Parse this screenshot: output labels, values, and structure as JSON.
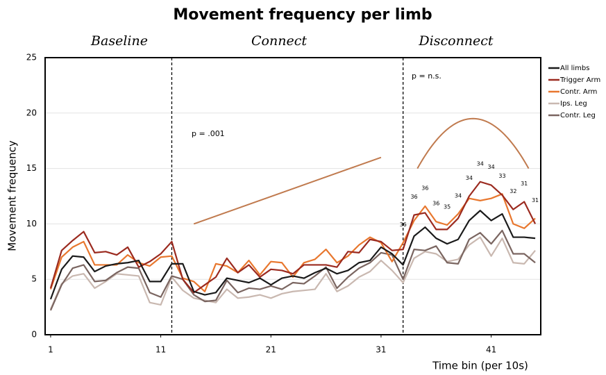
{
  "chart_data": {
    "type": "line",
    "title": "Movement frequency per limb",
    "xlabel": "Time bin (per 10s)",
    "ylabel": "Movement frequency",
    "phases": [
      "Baseline",
      "Connect",
      "Disconnect"
    ],
    "phase_boundaries": [
      12,
      33
    ],
    "annotations": [
      "p = .001",
      "p = n.s."
    ],
    "trend_line": {
      "x": [
        14,
        31
      ],
      "y": [
        10,
        16
      ]
    },
    "arc": {
      "x": [
        34.3,
        39.3,
        44.4
      ],
      "y": [
        15,
        19.5,
        15
      ]
    },
    "n_labels": {
      "bins": [
        33,
        34,
        35,
        36,
        37,
        38,
        39,
        40,
        41,
        42,
        43,
        44,
        45
      ],
      "values": [
        36,
        36,
        36,
        36,
        35,
        34,
        34,
        34,
        34,
        33,
        32,
        31,
        31
      ]
    },
    "x": [
      1,
      2,
      3,
      4,
      5,
      6,
      7,
      8,
      9,
      10,
      11,
      12,
      13,
      14,
      15,
      16,
      17,
      18,
      19,
      20,
      21,
      22,
      23,
      24,
      25,
      26,
      27,
      28,
      29,
      30,
      31,
      32,
      33,
      34,
      35,
      36,
      37,
      38,
      39,
      40,
      41,
      42,
      43,
      44,
      45
    ],
    "xlim": [
      0.5,
      45.5
    ],
    "xticks": [
      1,
      11,
      21,
      31,
      41
    ],
    "ylim": [
      0,
      25
    ],
    "yticks": [
      0,
      5,
      10,
      15,
      20,
      25
    ],
    "grid": true,
    "legend": "right",
    "series": [
      {
        "name": "All limbs",
        "color": "#1a1a1a",
        "values": [
          3.2,
          5.9,
          7.1,
          7.0,
          5.7,
          6.2,
          6.4,
          6.5,
          6.7,
          4.8,
          4.8,
          6.4,
          6.4,
          3.9,
          3.6,
          3.8,
          5.1,
          4.9,
          4.7,
          5.1,
          4.5,
          5.1,
          5.3,
          5.1,
          5.6,
          6.0,
          5.5,
          5.8,
          6.5,
          6.7,
          7.9,
          7.3,
          6.3,
          8.9,
          9.7,
          8.7,
          8.2,
          8.6,
          10.3,
          11.2,
          10.3,
          10.9,
          8.8,
          8.8,
          8.7
        ]
      },
      {
        "name": "Trigger Arm",
        "color": "#9b2a1f",
        "values": [
          4.2,
          7.6,
          8.5,
          9.3,
          7.4,
          7.5,
          7.2,
          7.9,
          6.1,
          6.6,
          7.3,
          8.4,
          5.0,
          3.8,
          4.5,
          5.2,
          6.9,
          5.6,
          6.3,
          5.2,
          5.9,
          5.8,
          5.5,
          6.3,
          6.3,
          6.3,
          6.1,
          7.5,
          7.4,
          8.6,
          8.4,
          7.6,
          7.7,
          10.8,
          11.0,
          9.5,
          9.5,
          10.5,
          12.5,
          13.8,
          13.5,
          12.6,
          11.3,
          12.0,
          10.0
        ]
      },
      {
        "name": "Contr. Arm",
        "color": "#e8772e",
        "values": [
          4.1,
          7.0,
          7.9,
          8.4,
          6.3,
          6.3,
          6.3,
          7.2,
          6.5,
          6.2,
          7.0,
          7.1,
          5.1,
          4.8,
          3.9,
          6.4,
          6.2,
          5.6,
          6.7,
          5.4,
          6.6,
          6.5,
          5.2,
          6.5,
          6.8,
          7.7,
          6.5,
          7.1,
          8.1,
          8.8,
          8.3,
          6.6,
          8.3,
          10.3,
          11.6,
          10.2,
          9.9,
          10.9,
          12.3,
          12.1,
          12.3,
          12.7,
          10.0,
          9.6,
          10.5
        ]
      },
      {
        "name": "Ips. Leg",
        "color": "#c9b8b0",
        "values": [
          2.3,
          4.6,
          5.3,
          5.5,
          4.2,
          4.8,
          5.5,
          5.4,
          5.3,
          2.9,
          2.7,
          5.2,
          4.0,
          3.3,
          3.1,
          2.9,
          4.1,
          3.3,
          3.4,
          3.6,
          3.3,
          3.7,
          3.9,
          4.0,
          4.1,
          5.5,
          3.9,
          4.4,
          5.2,
          5.7,
          6.7,
          5.8,
          4.7,
          6.9,
          7.5,
          7.3,
          6.6,
          6.8,
          8.1,
          8.8,
          7.1,
          8.7,
          6.5,
          6.4,
          7.6
        ]
      },
      {
        "name": "Contr. Leg",
        "color": "#7a6560",
        "values": [
          2.2,
          4.5,
          6.0,
          6.3,
          4.8,
          4.9,
          5.6,
          6.1,
          6.0,
          3.8,
          3.4,
          5.3,
          5.0,
          3.6,
          3.0,
          3.1,
          4.9,
          3.8,
          4.2,
          4.1,
          4.4,
          4.1,
          4.7,
          4.6,
          5.3,
          6.1,
          4.2,
          5.2,
          6.0,
          6.5,
          7.4,
          7.2,
          5.0,
          7.7,
          7.6,
          8.0,
          6.5,
          6.4,
          8.6,
          9.2,
          8.2,
          9.4,
          7.3,
          7.3,
          6.5
        ]
      }
    ]
  }
}
